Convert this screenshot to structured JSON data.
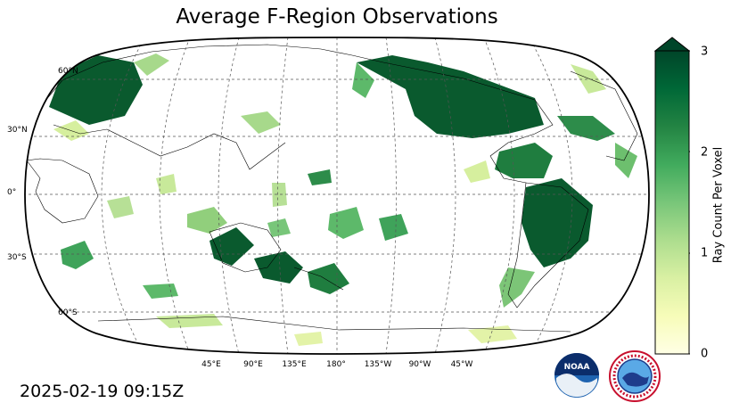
{
  "title": "Average F-Region Observations",
  "timestamp": "2025-02-19 09:15Z",
  "map": {
    "projection": "robinson",
    "central_longitude": 180,
    "graticule": "dashed",
    "lat_labels": [
      "60°N",
      "30°N",
      "0°",
      "30°S",
      "60°S"
    ],
    "lon_labels": [
      "45°E",
      "90°E",
      "135°E",
      "180°",
      "135°W",
      "90°W",
      "45°W"
    ]
  },
  "colorbar": {
    "label": "Ray Count Per Voxel",
    "ticks": [
      "0",
      "1",
      "2",
      "3"
    ],
    "range": [
      0,
      3
    ],
    "extend": "max",
    "colormap": "YlGn",
    "colors": [
      "#ffffe5",
      "#f7fcb9",
      "#d9f0a3",
      "#addd8e",
      "#78c679",
      "#41ab5d",
      "#238443",
      "#006837",
      "#004529"
    ]
  },
  "logos": {
    "noaa_text": "NOAA",
    "nws_text": "NATIONAL WEATHER SERVICE"
  }
}
